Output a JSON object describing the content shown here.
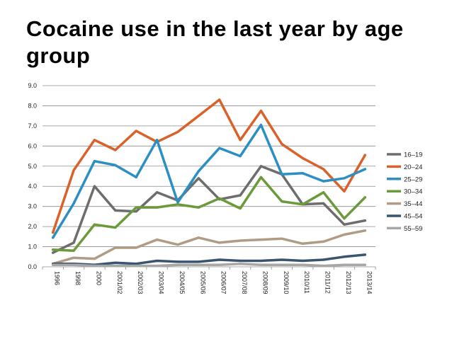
{
  "chart_data": {
    "type": "line",
    "title": "Cocaine use in the last year by age group",
    "xlabel": "",
    "ylabel": "",
    "ylim": [
      0,
      9
    ],
    "yticks": [
      "0.0",
      "1.0",
      "2.0",
      "3.0",
      "4.0",
      "5.0",
      "6.0",
      "7.0",
      "8.0",
      "9.0"
    ],
    "grid": true,
    "legend_position": "right",
    "categories": [
      "1996",
      "1998",
      "2000",
      "2001/02",
      "2002/03",
      "2003/04",
      "2004/05",
      "2005/06",
      "2006/07",
      "2007/08",
      "2008/09",
      "2009/10",
      "2010/11",
      "2011/12",
      "2012/13",
      "2013/14"
    ],
    "series": [
      {
        "name": "16–19",
        "color": "#6d6d6d",
        "values": [
          0.7,
          1.2,
          4.0,
          2.8,
          2.75,
          3.7,
          3.3,
          4.4,
          3.35,
          3.55,
          5.0,
          4.6,
          3.1,
          3.15,
          2.1,
          2.3
        ]
      },
      {
        "name": "20–24",
        "color": "#d9622b",
        "values": [
          1.7,
          4.8,
          6.3,
          5.8,
          6.75,
          6.2,
          6.7,
          7.5,
          8.3,
          6.3,
          7.75,
          6.1,
          5.4,
          4.85,
          3.75,
          5.55
        ]
      },
      {
        "name": "25–29",
        "color": "#2b8fc4",
        "values": [
          1.45,
          3.15,
          5.25,
          5.05,
          4.45,
          6.3,
          3.2,
          4.75,
          5.9,
          5.5,
          7.05,
          4.6,
          4.65,
          4.25,
          4.4,
          4.85
        ]
      },
      {
        "name": "30–34",
        "color": "#6b9a3a",
        "values": [
          0.85,
          0.8,
          2.1,
          1.95,
          2.95,
          2.95,
          3.1,
          2.95,
          3.4,
          2.9,
          4.45,
          3.25,
          3.1,
          3.7,
          2.4,
          3.45
        ]
      },
      {
        "name": "35–44",
        "color": "#b09c84",
        "values": [
          0.15,
          0.45,
          0.4,
          0.95,
          0.95,
          1.35,
          1.1,
          1.45,
          1.2,
          1.3,
          1.35,
          1.4,
          1.15,
          1.25,
          1.6,
          1.8
        ]
      },
      {
        "name": "45–54",
        "color": "#3a5470",
        "values": [
          0.15,
          0.15,
          0.1,
          0.2,
          0.15,
          0.3,
          0.25,
          0.25,
          0.35,
          0.3,
          0.3,
          0.35,
          0.3,
          0.35,
          0.5,
          0.6
        ]
      },
      {
        "name": "55–59",
        "color": "#a7a7a7",
        "values": [
          0.1,
          0.1,
          0.05,
          0.05,
          0.05,
          0.05,
          0.1,
          0.1,
          0.1,
          0.15,
          0.1,
          0.1,
          0.1,
          0.05,
          0.1,
          0.1
        ]
      }
    ]
  }
}
